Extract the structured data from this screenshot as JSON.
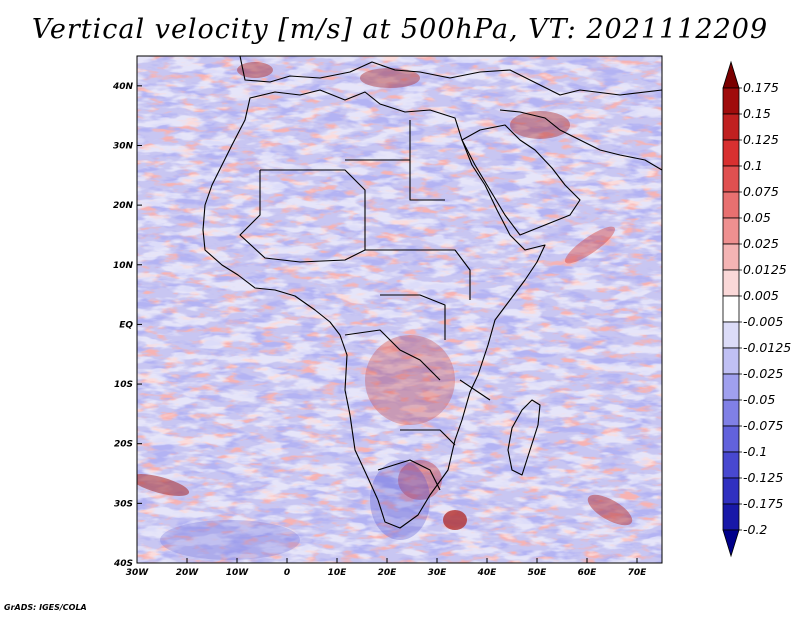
{
  "title": "Vertical velocity [m/s] at 500hPa, VT: 2021112209",
  "credit": "GrADS: IGES/COLA",
  "map": {
    "lon_ticks": [
      "30W",
      "20W",
      "10W",
      "0",
      "10E",
      "20E",
      "30E",
      "40E",
      "50E",
      "60E",
      "70E"
    ],
    "lat_ticks": [
      "40N",
      "30N",
      "20N",
      "10N",
      "EQ",
      "10S",
      "20S",
      "30S",
      "40S"
    ],
    "extent": {
      "lon": [
        -30,
        75
      ],
      "lat": [
        -40,
        45
      ]
    }
  },
  "colorbar": {
    "labels": [
      "0.175",
      "0.15",
      "0.125",
      "0.1",
      "0.075",
      "0.05",
      "0.025",
      "0.0125",
      "0.005",
      "-0.005",
      "-0.0125",
      "-0.025",
      "-0.05",
      "-0.075",
      "-0.1",
      "-0.125",
      "-0.175",
      "-0.2"
    ],
    "colors": [
      "#7a0000",
      "#a00c0c",
      "#c02020",
      "#d83030",
      "#e05050",
      "#e87070",
      "#ee9090",
      "#f4b4b4",
      "#fad8d8",
      "#ffffff",
      "#dcdcf8",
      "#c0c0f4",
      "#a0a0ee",
      "#8080e6",
      "#6262dc",
      "#4848d0",
      "#3030c0",
      "#1818a8",
      "#00008a"
    ]
  },
  "colors": {
    "positive": "#d83030",
    "negative": "#6262dc",
    "border": "#000000"
  }
}
